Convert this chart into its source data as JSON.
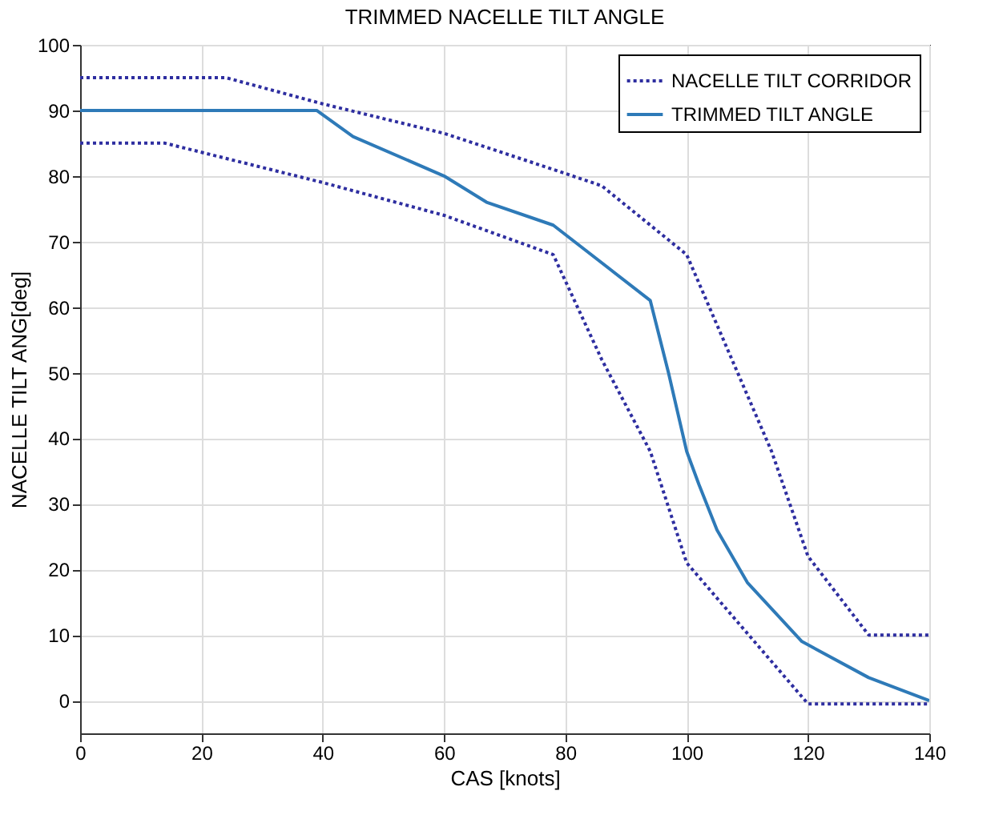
{
  "chart_data": {
    "type": "line",
    "title": "TRIMMED NACELLE TILT ANGLE",
    "xlabel": "CAS [knots]",
    "ylabel": "NACELLE TILT ANG[deg]",
    "xlim": [
      0,
      140
    ],
    "xticks": [
      0,
      20,
      40,
      60,
      80,
      100,
      120,
      140
    ],
    "ylim": [
      -5,
      100
    ],
    "yticks": [
      0,
      10,
      20,
      30,
      40,
      50,
      60,
      70,
      80,
      90,
      100
    ],
    "grid": true,
    "legend": "top right",
    "marker": "none",
    "series": [
      {
        "name": "NACELLE TILT CORRIDOR",
        "color": "#2e2ea0",
        "line_style": "dotted",
        "x": [
          0,
          24,
          40,
          60,
          78,
          86,
          100,
          114,
          120,
          130,
          140
        ],
        "values": [
          95,
          95,
          91,
          86.5,
          81,
          78.5,
          68,
          38,
          22,
          10,
          10
        ]
      },
      {
        "color": "#2e2ea0",
        "line_style": "dotted",
        "x": [
          0,
          14,
          40,
          60,
          78,
          86,
          94,
          100,
          120,
          140
        ],
        "values": [
          85,
          85,
          79,
          74,
          68,
          52,
          38,
          21,
          -0.5,
          -0.5
        ]
      },
      {
        "name": "TRIMMED TILT ANGLE",
        "color": "#2e7ab8",
        "line_style": "solid",
        "x": [
          0,
          39,
          45,
          60,
          67,
          78,
          94,
          97,
          100,
          102,
          105,
          110,
          119,
          130,
          140
        ],
        "values": [
          90,
          90,
          86,
          80,
          76,
          72.5,
          61,
          50,
          38,
          33,
          26,
          18,
          9,
          3.5,
          0
        ]
      }
    ]
  }
}
